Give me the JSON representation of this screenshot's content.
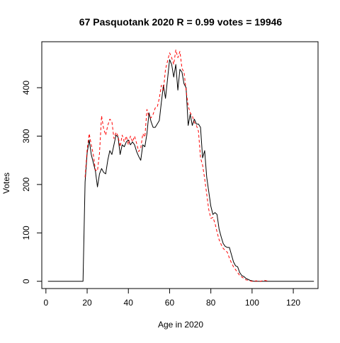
{
  "chart_data": {
    "type": "line",
    "title": "67 Pasquotank 2020 R = 0.99 votes = 19946",
    "xlabel": "Age in 2020",
    "ylabel": "Votes",
    "xlim": [
      -2,
      132
    ],
    "ylim": [
      -15,
      495
    ],
    "x_ticks": [
      0,
      20,
      40,
      60,
      80,
      100,
      120
    ],
    "y_ticks": [
      0,
      100,
      200,
      300,
      400
    ],
    "grid": false,
    "legend": "none",
    "series": [
      {
        "color": "#000000",
        "dash": "solid",
        "x": [
          1,
          2,
          3,
          4,
          5,
          6,
          7,
          8,
          9,
          10,
          11,
          12,
          13,
          14,
          15,
          16,
          17,
          18,
          19,
          20,
          21,
          22,
          23,
          24,
          25,
          26,
          27,
          28,
          29,
          30,
          31,
          32,
          33,
          34,
          35,
          36,
          37,
          38,
          39,
          40,
          41,
          42,
          43,
          44,
          45,
          46,
          47,
          48,
          49,
          50,
          51,
          52,
          53,
          54,
          55,
          56,
          57,
          58,
          59,
          60,
          61,
          62,
          63,
          64,
          65,
          66,
          67,
          68,
          69,
          70,
          71,
          72,
          73,
          74,
          75,
          76,
          77,
          78,
          79,
          80,
          81,
          82,
          83,
          84,
          85,
          86,
          87,
          88,
          89,
          90,
          91,
          92,
          93,
          94,
          95,
          96,
          97,
          98,
          99,
          100,
          101,
          102,
          103,
          104,
          105,
          106,
          107,
          108,
          109,
          110,
          111,
          112,
          113,
          114,
          115,
          116,
          117,
          118,
          119,
          120,
          121,
          122,
          123,
          124,
          125,
          126,
          127,
          128,
          129,
          130
        ],
        "y": [
          0,
          0,
          0,
          0,
          0,
          0,
          0,
          0,
          0,
          0,
          0,
          0,
          0,
          0,
          0,
          0,
          0,
          0,
          205,
          265,
          292,
          262,
          245,
          228,
          195,
          222,
          233,
          225,
          222,
          250,
          270,
          262,
          282,
          302,
          298,
          262,
          282,
          278,
          288,
          292,
          282,
          288,
          282,
          268,
          258,
          250,
          282,
          278,
          305,
          348,
          330,
          318,
          318,
          325,
          332,
          370,
          405,
          378,
          418,
          458,
          448,
          422,
          448,
          395,
          438,
          432,
          408,
          400,
          322,
          345,
          322,
          335,
          325,
          325,
          318,
          255,
          270,
          215,
          185,
          155,
          138,
          142,
          138,
          108,
          92,
          78,
          72,
          70,
          70,
          55,
          40,
          32,
          30,
          18,
          12,
          10,
          6,
          4,
          2,
          1,
          0,
          0,
          0,
          0,
          0,
          0,
          0,
          0,
          0,
          0,
          0,
          0,
          0,
          0,
          0,
          0,
          0,
          0,
          0,
          0,
          0,
          0,
          0,
          0,
          0,
          0,
          0,
          0,
          0,
          0
        ]
      },
      {
        "color": "#ff0000",
        "dash": "dashed",
        "x": [
          19,
          20,
          21,
          22,
          23,
          24,
          25,
          26,
          27,
          28,
          29,
          30,
          31,
          32,
          33,
          34,
          35,
          36,
          37,
          38,
          39,
          40,
          41,
          42,
          43,
          44,
          45,
          46,
          47,
          48,
          49,
          50,
          51,
          52,
          53,
          54,
          55,
          56,
          57,
          58,
          59,
          60,
          61,
          62,
          63,
          64,
          65,
          66,
          67,
          68,
          69,
          70,
          71,
          72,
          73,
          74,
          75,
          76,
          77,
          78,
          79,
          80,
          81,
          82,
          83,
          84,
          85,
          86,
          87,
          88,
          89,
          90,
          91,
          92,
          93,
          94,
          95,
          96,
          97,
          98,
          99,
          100,
          101,
          102,
          103,
          104,
          105,
          106,
          107,
          108
        ],
        "y": [
          215,
          272,
          305,
          282,
          262,
          230,
          228,
          265,
          342,
          315,
          302,
          322,
          335,
          330,
          295,
          308,
          300,
          278,
          302,
          288,
          300,
          282,
          300,
          288,
          300,
          285,
          268,
          275,
          305,
          298,
          355,
          340,
          338,
          345,
          358,
          360,
          378,
          405,
          395,
          438,
          455,
          472,
          462,
          448,
          478,
          462,
          475,
          440,
          432,
          395,
          362,
          348,
          342,
          328,
          322,
          310,
          255,
          240,
          212,
          180,
          148,
          130,
          132,
          120,
          102,
          86,
          76,
          68,
          64,
          60,
          48,
          38,
          30,
          24,
          18,
          12,
          9,
          6,
          3,
          2,
          1,
          0,
          0,
          1,
          0,
          0,
          1,
          2,
          1,
          0
        ]
      }
    ]
  }
}
